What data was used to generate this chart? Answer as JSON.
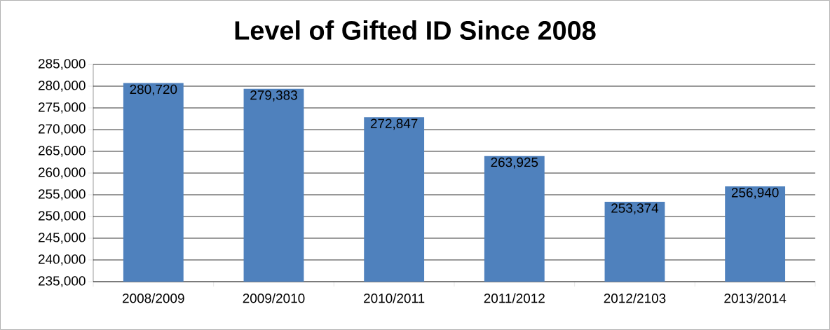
{
  "chart_data": {
    "type": "bar",
    "title": "Level of Gifted ID Since 2008",
    "categories": [
      "2008/2009",
      "2009/2010",
      "2010/2011",
      "2011/2012",
      "2012/2103",
      "2013/2014"
    ],
    "values": [
      280720,
      279383,
      272847,
      263925,
      253374,
      256940
    ],
    "value_labels": [
      "280,720",
      "279,383",
      "272,847",
      "263,925",
      "253,374",
      "256,940"
    ],
    "color": "#4f81bd",
    "ylim": [
      235000,
      285000
    ],
    "yticks": [
      {
        "value": 235000,
        "label": "235,000"
      },
      {
        "value": 240000,
        "label": "240,000"
      },
      {
        "value": 245000,
        "label": "245,000"
      },
      {
        "value": 250000,
        "label": "250,000"
      },
      {
        "value": 255000,
        "label": "255,000"
      },
      {
        "value": 260000,
        "label": "260,000"
      },
      {
        "value": 265000,
        "label": "265,000"
      },
      {
        "value": 270000,
        "label": "270,000"
      },
      {
        "value": 275000,
        "label": "275,000"
      },
      {
        "value": 280000,
        "label": "280,000"
      },
      {
        "value": 285000,
        "label": "285,000"
      }
    ],
    "grid": "y"
  }
}
